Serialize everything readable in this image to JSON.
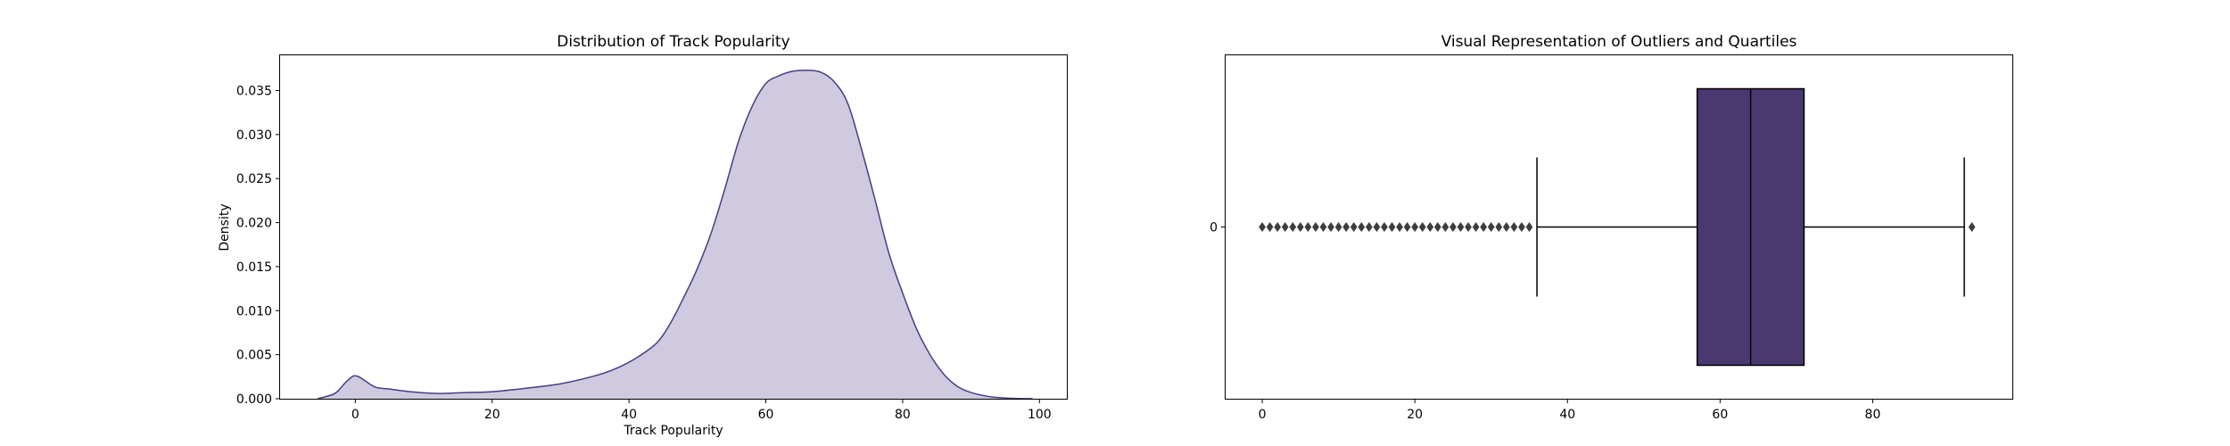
{
  "colors": {
    "kde_line": "#4a3c82",
    "kde_fill": "#cfcae0",
    "box_fill": "#4a3970",
    "ink": "#000000"
  },
  "chart_data": [
    {
      "type": "area",
      "title": "Distribution of Track Popularity",
      "xlabel": "Track Popularity",
      "ylabel": "Density",
      "xlim": [
        -11,
        104
      ],
      "ylim": [
        0,
        0.039
      ],
      "xticks": [
        0,
        20,
        40,
        60,
        80,
        100
      ],
      "xtick_labels": [
        "0",
        "20",
        "40",
        "60",
        "80",
        "100"
      ],
      "yticks": [
        0,
        0.005,
        0.01,
        0.015,
        0.02,
        0.025,
        0.03,
        0.035
      ],
      "ytick_labels": [
        "0.000",
        "0.005",
        "0.010",
        "0.015",
        "0.020",
        "0.025",
        "0.030",
        "0.035"
      ],
      "grid": false,
      "series": [
        {
          "x": [
            -5.5,
            -3,
            -1.5,
            -0.5,
            0,
            0.5,
            1.5,
            3,
            5,
            8,
            12,
            16,
            20,
            25,
            30,
            35,
            38,
            41,
            44,
            46,
            48,
            50,
            52,
            54,
            56,
            58,
            60,
            62,
            64,
            66,
            68,
            70,
            72,
            74,
            76,
            78,
            80,
            82,
            84,
            86,
            88,
            90,
            93,
            96,
            99
          ],
          "y": [
            0.0,
            0.0006,
            0.0018,
            0.0025,
            0.0026,
            0.0025,
            0.002,
            0.0013,
            0.0011,
            0.0008,
            0.0006,
            0.0007,
            0.0008,
            0.0012,
            0.0017,
            0.0026,
            0.0034,
            0.0046,
            0.0063,
            0.0085,
            0.0115,
            0.0148,
            0.0188,
            0.0238,
            0.0292,
            0.0332,
            0.0358,
            0.0367,
            0.0372,
            0.0373,
            0.0371,
            0.036,
            0.0335,
            0.0283,
            0.0225,
            0.0165,
            0.012,
            0.008,
            0.005,
            0.0028,
            0.0014,
            0.0007,
            0.0002,
            5e-05,
            0.0
          ]
        }
      ]
    },
    {
      "type": "box",
      "title": "Visual Representation of Outliers and Quartiles",
      "xlim": [
        -4.8,
        98.3
      ],
      "xticks": [
        0,
        20,
        40,
        60,
        80
      ],
      "xtick_labels": [
        "0",
        "20",
        "40",
        "60",
        "80"
      ],
      "category_labels": [
        "0"
      ],
      "grid": false,
      "box": {
        "whisker_low": 36,
        "q1": 57,
        "median": 64,
        "q3": 71,
        "whisker_high": 92
      },
      "outliers": [
        0,
        1,
        2,
        3,
        4,
        5,
        6,
        7,
        8,
        9,
        10,
        11,
        12,
        13,
        14,
        15,
        16,
        17,
        18,
        19,
        20,
        21,
        22,
        23,
        24,
        25,
        26,
        27,
        28,
        29,
        30,
        31,
        32,
        33,
        34,
        35,
        93
      ]
    }
  ]
}
